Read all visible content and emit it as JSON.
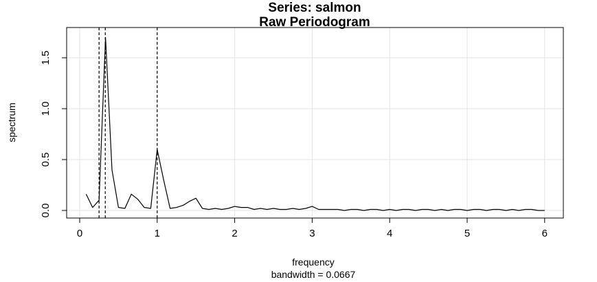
{
  "chart_data": {
    "type": "line",
    "title": "Series: salmon",
    "subtitle": "Raw Periodogram",
    "xlabel": "frequency",
    "xlabel_sub": "bandwidth = 0.0667",
    "ylabel": "spectrum",
    "xlim": [
      0,
      6
    ],
    "ylim": [
      0,
      1.75
    ],
    "x_ticks": [
      "0",
      "1",
      "2",
      "3",
      "4",
      "5",
      "6"
    ],
    "y_ticks": [
      "0.0",
      "0.5",
      "1.0",
      "1.5"
    ],
    "grid": true,
    "vlines": [
      0.25,
      0.33,
      1.0
    ],
    "x": [
      0.083,
      0.167,
      0.25,
      0.333,
      0.417,
      0.5,
      0.583,
      0.667,
      0.75,
      0.833,
      0.917,
      1.0,
      1.083,
      1.167,
      1.25,
      1.333,
      1.417,
      1.5,
      1.583,
      1.667,
      1.75,
      1.833,
      1.917,
      2.0,
      2.083,
      2.167,
      2.25,
      2.333,
      2.417,
      2.5,
      2.583,
      2.667,
      2.75,
      2.833,
      2.917,
      3.0,
      3.083,
      3.167,
      3.25,
      3.333,
      3.417,
      3.5,
      3.583,
      3.667,
      3.75,
      3.833,
      3.917,
      4.0,
      4.083,
      4.167,
      4.25,
      4.333,
      4.417,
      4.5,
      4.583,
      4.667,
      4.75,
      4.833,
      4.917,
      5.0,
      5.083,
      5.167,
      5.25,
      5.333,
      5.417,
      5.5,
      5.583,
      5.667,
      5.75,
      5.833,
      5.917,
      6.0
    ],
    "series": [
      {
        "values": [
          0.16,
          0.03,
          0.1,
          1.7,
          0.4,
          0.03,
          0.02,
          0.16,
          0.11,
          0.03,
          0.02,
          0.6,
          0.3,
          0.02,
          0.03,
          0.05,
          0.09,
          0.12,
          0.02,
          0.01,
          0.02,
          0.01,
          0.02,
          0.04,
          0.03,
          0.03,
          0.01,
          0.02,
          0.01,
          0.02,
          0.01,
          0.01,
          0.02,
          0.01,
          0.02,
          0.04,
          0.01,
          0.01,
          0.01,
          0.01,
          0.0,
          0.01,
          0.01,
          0.0,
          0.01,
          0.01,
          0.0,
          0.01,
          0.0,
          0.01,
          0.01,
          0.0,
          0.01,
          0.01,
          0.0,
          0.01,
          0.0,
          0.01,
          0.01,
          0.0,
          0.01,
          0.01,
          0.0,
          0.01,
          0.01,
          0.0,
          0.01,
          0.0,
          0.01,
          0.01,
          0.0,
          0.0
        ]
      }
    ]
  }
}
